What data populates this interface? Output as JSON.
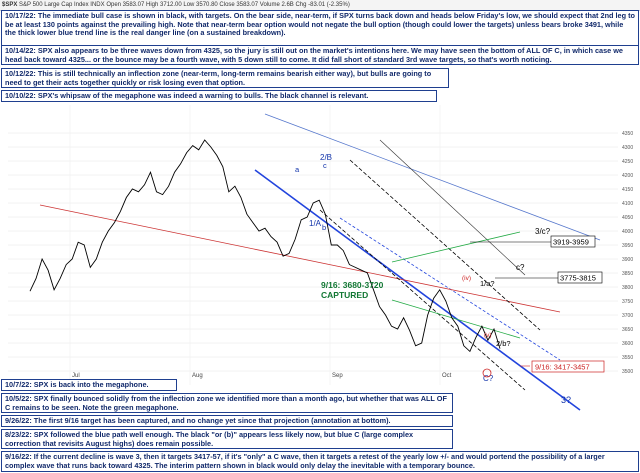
{
  "header": {
    "symbol": "$SPX",
    "name": "S&P 500 Large Cap Index",
    "exchange": "INDX",
    "stats": "Open 3583.07  High 3712.00  Low 3570.80  Close 3583.07  Volume 2.6B  Chg -83.01 (-2.35%)"
  },
  "notes": [
    "10/17/22:  The immediate bull case is shown in black, with targets.  On the bear side, near-term, if SPX turns back down and heads below Friday's low, we should expect that 2nd leg to be at least 130 points against the prevailing high.  Note that near-term bear option would not negate the bull option (though could lower the targets) unless bears broke 3491, while the thick lower blue trend line is the real danger line (on a sustained breakdown).",
    "10/14/22:  SPX also appears to be three waves down from 4325, so the jury is still out on the market's intentions here.  We may have seen the bottom of ALL OF C, in which case we head back toward 4325... or the bounce may be a fourth wave, with 5 down still to come.  It did fall short of standard 3rd wave targets, so that's worth noticing.",
    "10/12/22:  This is still technically an inflection zone (near-term, long-term remains bearish either way), but bulls are going to need to get their acts together quickly or risk losing even that option.",
    "10/10/22:  SPX's whipsaw of the megaphone was indeed a warning to bulls.  The black channel is relevant.",
    "10/7/22:  SPX is back into the megaphone.",
    "10/5/22:  SPX finally bounced solidly from the inflection zone we identified more than a month ago, but whether that was ALL OF C remains to be seen.  Note the green megaphone.",
    "9/26/22:  The first 9/16 target has been captured, and no change yet since that projection (annotation at bottom).",
    "8/23/22:  SPX followed the blue path well enough.  The black \"or (b)\" appears less likely now, but blue C (large complex correction that revisits August highs) does remain possible.",
    "9/16/22:  If the current decline is wave 3, then it targets 3417-57, if it's \"only\" a C wave, then it targets a retest of the yearly low +/- and would portend the possibility of a larger complex wave that runs back toward 4325.  The interim pattern shown in black would only delay the inevitable with a temporary bounce."
  ],
  "annotations": {
    "target_1": "3919-3959",
    "target_2": "3775-3815",
    "captured_range": "9/16: 3680-3720",
    "captured_word": "CAPTURED",
    "target_3": "9/16: 3417-3457",
    "wave_3c": "3/c?",
    "wave_c": "c?",
    "wave_1a": "1/a?",
    "wave_2b": "2/b?",
    "wave_2B_C": "2/B",
    "wave_c_small": "c",
    "wave_a": "a",
    "wave_b": "b",
    "wave_1A": "1/A",
    "wave_3q": "3?",
    "wave_Cq": "C?",
    "wave_iv": "(iv)",
    "wave_v": "(v)"
  },
  "chart_data": {
    "type": "line",
    "title": "",
    "xlabel": "",
    "ylabel": "",
    "ylim": [
      3450,
      4450
    ],
    "x_tick_labels": [
      "Jul",
      "Aug",
      "Sep",
      "Oct"
    ],
    "y_tick_labels": [
      "3500",
      "3550",
      "3600",
      "3650",
      "3700",
      "3750",
      "3800",
      "3850",
      "3900",
      "3950",
      "4000",
      "4050",
      "4100",
      "4150",
      "4200",
      "4250",
      "4300",
      "4350"
    ],
    "series": [
      {
        "values": [
          3785,
          3830,
          3900,
          3860,
          3790,
          3830,
          3880,
          3900,
          3960,
          3950,
          3870,
          3900,
          3960,
          4000,
          4030,
          4070,
          4120,
          4150,
          4140,
          4165,
          4210,
          4140,
          4130,
          4160,
          4210,
          4240,
          4280,
          4305,
          4290,
          4325,
          4300,
          4270,
          4230,
          4140,
          4160,
          4120,
          4060,
          4030,
          4000,
          4010,
          3980,
          3960,
          3910,
          3920,
          3970,
          4040,
          4050,
          4100,
          4110,
          4060,
          3950,
          3950,
          3930,
          3880,
          3870,
          3860,
          3850,
          3790,
          3730,
          3700,
          3660,
          3650,
          3690,
          3645,
          3590,
          3600,
          3700,
          3760,
          3790,
          3750,
          3690,
          3660,
          3590,
          3570,
          3620,
          3660,
          3610,
          3650,
          3580
        ]
      }
    ]
  }
}
